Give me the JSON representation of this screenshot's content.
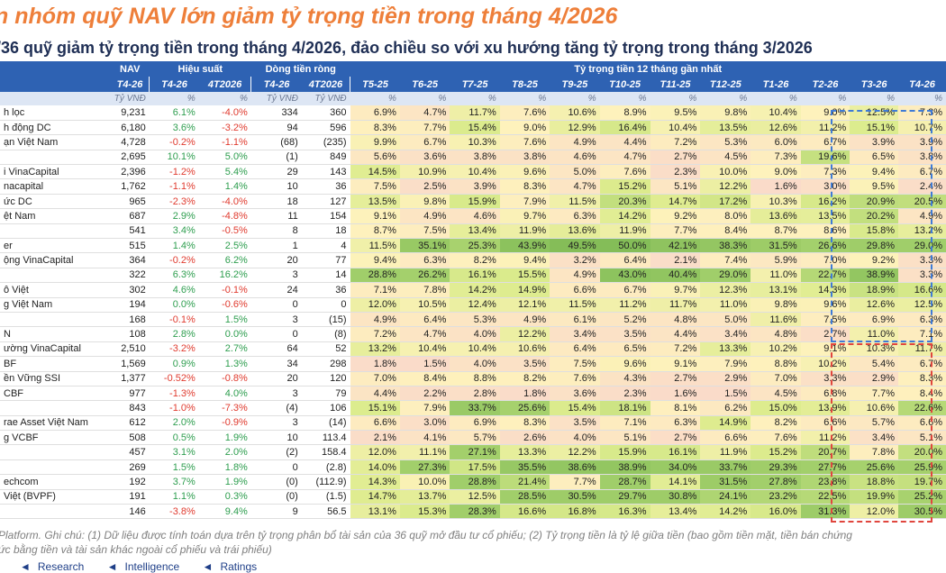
{
  "title": "n nhóm quỹ NAV lớn giảm tỷ trọng tiền trong tháng 4/2026",
  "subtitle": "/36 quỹ giảm tỷ trọng tiền trong tháng 4/2026, đảo chiều so với xu hướng tăng tỷ trọng trong tháng 3/2026",
  "table": {
    "group_headers": [
      "NAV",
      "Hiệu suất",
      "Dòng tiền ròng",
      "Tỷ trọng tiền 12 tháng gần nhất"
    ],
    "columns": [
      "T4-26",
      "T4-26",
      "4T2026",
      "T4-26",
      "4T2026",
      "T5-25",
      "T6-25",
      "T7-25",
      "T8-25",
      "T9-25",
      "T10-25",
      "T11-25",
      "T12-25",
      "T1-26",
      "T2-26",
      "T3-26",
      "T4-26"
    ],
    "units": [
      "Tỷ VNĐ",
      "%",
      "%",
      "Tỷ VNĐ",
      "Tỷ VNĐ",
      "%",
      "%",
      "%",
      "%",
      "%",
      "%",
      "%",
      "%",
      "%",
      "%",
      "%",
      "%"
    ],
    "rows": [
      {
        "name": "h lọc",
        "values": [
          "9,231",
          "6.1%",
          "-4.0%",
          "334",
          "360",
          "6.9%",
          "4.7%",
          "11.7%",
          "7.6%",
          "10.6%",
          "8.9%",
          "9.5%",
          "9.8%",
          "10.4%",
          "9.0%",
          "12.5%",
          "7.3%"
        ]
      },
      {
        "name": "h động DC",
        "values": [
          "6,180",
          "3.6%",
          "-3.2%",
          "94",
          "596",
          "8.3%",
          "7.7%",
          "15.4%",
          "9.0%",
          "12.9%",
          "16.4%",
          "10.4%",
          "13.5%",
          "12.6%",
          "11.2%",
          "15.1%",
          "10.7%"
        ]
      },
      {
        "name": "ạn Việt Nam",
        "values": [
          "4,728",
          "-0.2%",
          "-1.1%",
          "(68)",
          "(235)",
          "9.9%",
          "6.7%",
          "10.3%",
          "7.6%",
          "4.9%",
          "4.4%",
          "7.2%",
          "5.3%",
          "6.0%",
          "6.7%",
          "3.9%",
          "3.9%"
        ]
      },
      {
        "name": "",
        "values": [
          "2,695",
          "10.1%",
          "5.0%",
          "(1)",
          "849",
          "5.6%",
          "3.6%",
          "3.8%",
          "3.8%",
          "4.6%",
          "4.7%",
          "2.7%",
          "4.5%",
          "7.3%",
          "19.6%",
          "6.5%",
          "3.8%"
        ]
      },
      {
        "name": "i VinaCapital",
        "values": [
          "2,396",
          "-1.2%",
          "5.4%",
          "29",
          "143",
          "14.5%",
          "10.9%",
          "10.4%",
          "9.6%",
          "5.0%",
          "7.6%",
          "2.3%",
          "10.0%",
          "9.0%",
          "7.3%",
          "9.4%",
          "6.7%"
        ]
      },
      {
        "name": "nacapital",
        "values": [
          "1,762",
          "-1.1%",
          "1.4%",
          "10",
          "36",
          "7.5%",
          "2.5%",
          "3.9%",
          "8.3%",
          "4.7%",
          "15.2%",
          "5.1%",
          "12.2%",
          "1.6%",
          "3.0%",
          "9.5%",
          "2.4%"
        ]
      },
      {
        "name": "ức DC",
        "values": [
          "965",
          "-2.3%",
          "-4.0%",
          "18",
          "127",
          "13.5%",
          "9.8%",
          "15.9%",
          "7.9%",
          "11.5%",
          "20.3%",
          "14.7%",
          "17.2%",
          "10.3%",
          "16.2%",
          "20.9%",
          "20.5%"
        ]
      },
      {
        "name": "ệt Nam",
        "values": [
          "687",
          "2.9%",
          "-4.8%",
          "11",
          "154",
          "9.1%",
          "4.9%",
          "4.6%",
          "9.7%",
          "6.3%",
          "14.2%",
          "9.2%",
          "8.0%",
          "13.6%",
          "13.5%",
          "20.2%",
          "4.9%"
        ]
      },
      {
        "name": "",
        "values": [
          "541",
          "3.4%",
          "-0.5%",
          "8",
          "18",
          "8.7%",
          "7.5%",
          "13.4%",
          "11.9%",
          "13.6%",
          "11.9%",
          "7.7%",
          "8.4%",
          "8.7%",
          "8.6%",
          "15.8%",
          "13.2%"
        ]
      },
      {
        "name": "er",
        "values": [
          "515",
          "1.4%",
          "2.5%",
          "1",
          "4",
          "11.5%",
          "35.1%",
          "25.3%",
          "43.9%",
          "49.5%",
          "50.0%",
          "42.1%",
          "38.3%",
          "31.5%",
          "26.6%",
          "29.8%",
          "29.0%"
        ]
      },
      {
        "name": "ộng VinaCapital",
        "values": [
          "364",
          "-0.2%",
          "6.2%",
          "20",
          "77",
          "9.4%",
          "6.3%",
          "8.2%",
          "9.4%",
          "3.2%",
          "6.4%",
          "2.1%",
          "7.4%",
          "5.9%",
          "7.0%",
          "9.2%",
          "3.3%"
        ]
      },
      {
        "name": "",
        "values": [
          "322",
          "6.3%",
          "16.2%",
          "3",
          "14",
          "28.8%",
          "26.2%",
          "16.1%",
          "15.5%",
          "4.9%",
          "43.0%",
          "40.4%",
          "29.0%",
          "11.0%",
          "22.7%",
          "38.9%",
          "3.3%"
        ]
      },
      {
        "name": "ô Việt",
        "values": [
          "302",
          "4.6%",
          "-0.1%",
          "24",
          "36",
          "7.1%",
          "7.8%",
          "14.2%",
          "14.9%",
          "6.6%",
          "6.7%",
          "9.7%",
          "12.3%",
          "13.1%",
          "14.3%",
          "18.9%",
          "16.6%"
        ]
      },
      {
        "name": "g Việt Nam",
        "values": [
          "194",
          "0.0%",
          "-0.6%",
          "0",
          "0",
          "12.0%",
          "10.5%",
          "12.4%",
          "12.1%",
          "11.5%",
          "11.2%",
          "11.7%",
          "11.0%",
          "9.8%",
          "9.6%",
          "12.6%",
          "12.5%"
        ]
      },
      {
        "name": "",
        "values": [
          "168",
          "-0.1%",
          "1.5%",
          "3",
          "(15)",
          "4.9%",
          "6.4%",
          "5.3%",
          "4.9%",
          "6.1%",
          "5.2%",
          "4.8%",
          "5.0%",
          "11.6%",
          "7.5%",
          "6.9%",
          "6.3%"
        ]
      },
      {
        "name": "N",
        "values": [
          "108",
          "2.8%",
          "0.0%",
          "0",
          "(8)",
          "7.2%",
          "4.7%",
          "4.0%",
          "12.2%",
          "3.4%",
          "3.5%",
          "4.4%",
          "3.4%",
          "4.8%",
          "2.7%",
          "11.0%",
          "7.1%"
        ]
      },
      {
        "name": "ường VinaCapital",
        "values": [
          "2,510",
          "-3.2%",
          "2.7%",
          "64",
          "52",
          "13.2%",
          "10.4%",
          "10.4%",
          "10.6%",
          "6.4%",
          "6.5%",
          "7.2%",
          "13.3%",
          "10.2%",
          "9.1%",
          "10.3%",
          "11.7%"
        ]
      },
      {
        "name": "BF",
        "values": [
          "1,569",
          "0.9%",
          "1.3%",
          "34",
          "298",
          "1.8%",
          "1.5%",
          "4.0%",
          "3.5%",
          "7.5%",
          "9.6%",
          "9.1%",
          "7.9%",
          "8.8%",
          "10.2%",
          "5.4%",
          "6.7%"
        ]
      },
      {
        "name": "ền Vững SSI",
        "values": [
          "1,377",
          "-0.52%",
          "-0.8%",
          "20",
          "120",
          "7.0%",
          "8.4%",
          "8.8%",
          "8.2%",
          "7.6%",
          "4.3%",
          "2.7%",
          "2.9%",
          "7.0%",
          "3.3%",
          "2.9%",
          "8.3%"
        ]
      },
      {
        "name": "CBF",
        "values": [
          "977",
          "-1.3%",
          "4.0%",
          "3",
          "79",
          "4.4%",
          "2.2%",
          "2.8%",
          "1.8%",
          "3.6%",
          "2.3%",
          "1.6%",
          "1.5%",
          "4.5%",
          "6.8%",
          "7.7%",
          "8.4%"
        ]
      },
      {
        "name": "",
        "values": [
          "843",
          "-1.0%",
          "-7.3%",
          "(4)",
          "106",
          "15.1%",
          "7.9%",
          "33.7%",
          "25.6%",
          "15.4%",
          "18.1%",
          "8.1%",
          "6.2%",
          "15.0%",
          "13.9%",
          "10.6%",
          "22.6%"
        ]
      },
      {
        "name": "rae Asset Việt Nam",
        "values": [
          "612",
          "2.0%",
          "-0.9%",
          "3",
          "(14)",
          "6.6%",
          "3.0%",
          "6.9%",
          "8.3%",
          "3.5%",
          "7.1%",
          "6.3%",
          "14.9%",
          "8.2%",
          "6.6%",
          "5.7%",
          "6.6%"
        ]
      },
      {
        "name": "g VCBF",
        "values": [
          "508",
          "0.5%",
          "1.9%",
          "10",
          "113.4",
          "2.1%",
          "4.1%",
          "5.7%",
          "2.6%",
          "4.0%",
          "5.1%",
          "2.7%",
          "6.6%",
          "7.6%",
          "11.2%",
          "3.4%",
          "5.1%"
        ]
      },
      {
        "name": "",
        "values": [
          "457",
          "3.1%",
          "2.0%",
          "(2)",
          "158.4",
          "12.0%",
          "11.1%",
          "27.1%",
          "13.3%",
          "12.2%",
          "15.9%",
          "16.1%",
          "11.9%",
          "15.2%",
          "20.7%",
          "7.8%",
          "20.0%"
        ]
      },
      {
        "name": "",
        "values": [
          "269",
          "1.5%",
          "1.8%",
          "0",
          "(2.8)",
          "14.0%",
          "27.3%",
          "17.5%",
          "35.5%",
          "38.6%",
          "38.9%",
          "34.0%",
          "33.7%",
          "29.3%",
          "27.7%",
          "25.6%",
          "25.9%"
        ]
      },
      {
        "name": "echcom",
        "values": [
          "192",
          "3.7%",
          "1.9%",
          "(0)",
          "(112.9)",
          "14.3%",
          "10.0%",
          "28.8%",
          "21.4%",
          "7.7%",
          "28.7%",
          "14.1%",
          "31.5%",
          "27.8%",
          "23.8%",
          "18.8%",
          "19.7%"
        ]
      },
      {
        "name": "Việt (BVPF)",
        "values": [
          "191",
          "1.1%",
          "0.3%",
          "(0)",
          "(1.5)",
          "14.7%",
          "13.7%",
          "12.5%",
          "28.5%",
          "30.5%",
          "29.7%",
          "30.8%",
          "24.1%",
          "23.2%",
          "22.5%",
          "19.9%",
          "25.2%"
        ]
      },
      {
        "name": "",
        "values": [
          "146",
          "-3.8%",
          "9.4%",
          "9",
          "56.5",
          "13.1%",
          "15.3%",
          "28.3%",
          "16.6%",
          "16.8%",
          "16.3%",
          "13.4%",
          "14.2%",
          "16.0%",
          "31.3%",
          "12.0%",
          "30.5%"
        ]
      }
    ]
  },
  "notes": [
    "Platform. Ghi chú: (1) Dữ liệu được tính toán dựa trên tỷ trọng phân bổ tài sản của 36 quỹ mở đầu tư cổ phiếu; (2) Tỷ trọng tiền là tỷ lệ giữa tiền (bao gồm tiền mặt, tiền bán chứng",
    "ức bằng tiền và tài sản khác ngoài cổ phiếu và trái phiếu)"
  ],
  "footer": [
    "Research",
    "Intelligence",
    "Ratings"
  ],
  "colors": {
    "title": "#ee7f3a",
    "subtitle": "#1f2f55",
    "header_bg": "#2e62b3",
    "unit_row_bg": "#dde6f4",
    "positive": "#2e9e4f",
    "negative": "#e03b2f",
    "highlight_up": "#3f7bd6",
    "highlight_down": "#e0463e"
  }
}
